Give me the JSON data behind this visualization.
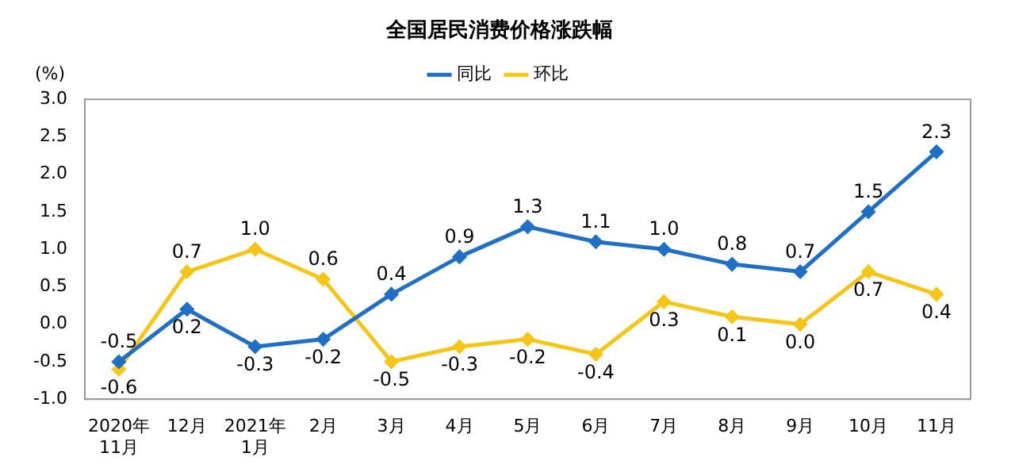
{
  "chart_data": {
    "type": "line",
    "title": "全国居民消费价格涨跌幅",
    "ylabel": "(%)",
    "categories": [
      "2020年\n11月",
      "12月",
      "2021年\n1月",
      "2月",
      "3月",
      "4月",
      "5月",
      "6月",
      "7月",
      "8月",
      "9月",
      "10月",
      "11月"
    ],
    "series": [
      {
        "name": "同比",
        "color": "#1f6fc5",
        "values": [
          -0.5,
          0.2,
          -0.3,
          -0.2,
          0.4,
          0.9,
          1.3,
          1.1,
          1.0,
          0.8,
          0.7,
          1.5,
          2.3
        ],
        "value_labels": [
          "-0.5",
          "0.2",
          "-0.3",
          "-0.2",
          "0.4",
          "0.9",
          "1.3",
          "1.1",
          "1.0",
          "0.8",
          "0.7",
          "1.5",
          "2.3"
        ]
      },
      {
        "name": "环比",
        "color": "#f5c518",
        "values": [
          -0.6,
          0.7,
          1.0,
          0.6,
          -0.5,
          -0.3,
          -0.2,
          -0.4,
          0.3,
          0.1,
          0.0,
          0.7,
          0.4
        ],
        "value_labels": [
          "-0.6",
          "0.7",
          "1.0",
          "0.6",
          "-0.5",
          "-0.3",
          "-0.2",
          "-0.4",
          "0.3",
          "0.1",
          "0.0",
          "0.7",
          "0.4"
        ]
      }
    ],
    "ylim": [
      -1,
      3
    ],
    "yticks": [
      {
        "value": -1,
        "label": "-1.0"
      },
      {
        "value": -0.5,
        "label": "-0.5"
      },
      {
        "value": 0,
        "label": "0.0"
      },
      {
        "value": 0.5,
        "label": "0.5"
      },
      {
        "value": 1,
        "label": "1.0"
      },
      {
        "value": 1.5,
        "label": "1.5"
      },
      {
        "value": 2,
        "label": "2.0"
      },
      {
        "value": 2.5,
        "label": "2.5"
      },
      {
        "value": 3,
        "label": "3.0"
      }
    ],
    "grid": false,
    "legend": "top",
    "marker": "diamond",
    "line_style": "solid"
  }
}
